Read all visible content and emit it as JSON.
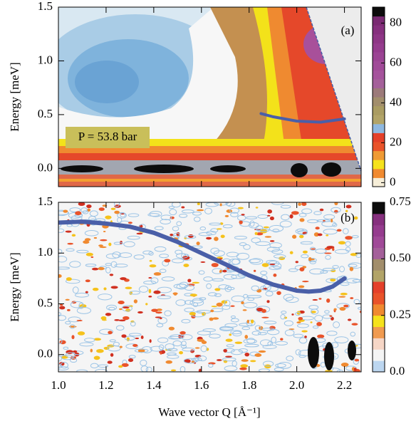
{
  "chart_data": [
    {
      "type": "contour",
      "annotation": "(a)",
      "pressure_label": "P = 53.8 bar",
      "y_label": "Energy [meV]",
      "xlim": [
        1.0,
        2.27
      ],
      "ylim": [
        -0.17,
        1.5
      ],
      "xticks": [
        {
          "value": 1.0,
          "label": "1.0"
        },
        1.2,
        1.4,
        1.6,
        1.8,
        {
          "value": 2.0,
          "label": "2.0"
        },
        2.2
      ],
      "xtick_labels": false,
      "yticks": [
        {
          "value": 0.0,
          "label": "0.0"
        },
        0.5,
        {
          "value": 1.0,
          "label": "1.0"
        },
        1.5
      ],
      "clim": [
        -2,
        88
      ],
      "cticks": [
        0,
        20,
        40,
        60,
        80
      ],
      "colormap": [
        "#f6eed8",
        "#f08a30",
        "#f5e21c",
        "#ef9a34",
        "#e9532a",
        "#e4402a",
        "#8fb8e0",
        "#b2a468",
        "#aa9c62",
        "#a28e6c",
        "#9c7a7a",
        "#a4609a",
        "#a5539c",
        "#a04a98",
        "#9b4494",
        "#953c8e",
        "#8e3686",
        "#86307e",
        "#7a2a72",
        "#0c0c0c"
      ],
      "series": [
        {
          "color": "#4a5fa8",
          "x": [
            1.85,
            1.9,
            2.0,
            2.1,
            2.2
          ],
          "values": [
            0.51,
            0.48,
            0.44,
            0.43,
            0.46
          ]
        }
      ]
    },
    {
      "type": "contour",
      "annotation": "(b)",
      "y_label": "Energy [meV]",
      "x_label": "Wave vector Q [Å⁻¹]",
      "xlim": [
        1.0,
        2.27
      ],
      "ylim": [
        -0.17,
        1.5
      ],
      "xticks": [
        {
          "value": 1.0,
          "label": "1.0"
        },
        1.2,
        1.4,
        1.6,
        1.8,
        {
          "value": 2.0,
          "label": "2.0"
        },
        2.2
      ],
      "xtick_labels": true,
      "yticks": [
        {
          "value": 0.0,
          "label": "0.0"
        },
        0.5,
        {
          "value": 1.0,
          "label": "1.0"
        },
        1.5
      ],
      "clim": [
        0,
        0.75
      ],
      "cticks": [
        {
          "value": 0.0,
          "label": "0.0"
        },
        0.25,
        {
          "value": 0.5,
          "label": "0.50"
        },
        0.75
      ],
      "colormap": [
        "#bcd6f0",
        "#f4f4f4",
        "#f6d6c6",
        "#f09a50",
        "#f5e21c",
        "#f08a30",
        "#e9532a",
        "#e4402a",
        "#b2a468",
        "#a28e6c",
        "#a4609a",
        "#a04a98",
        "#953c8e",
        "#86307e",
        "#0c0c0c"
      ],
      "series": [
        {
          "color": "#4a5fa8",
          "x": [
            1.0,
            1.1,
            1.2,
            1.3,
            1.4,
            1.5,
            1.6,
            1.7,
            1.8,
            1.9,
            2.0,
            2.05,
            2.1,
            2.15,
            2.2
          ],
          "values": [
            1.3,
            1.31,
            1.29,
            1.26,
            1.2,
            1.11,
            1.0,
            0.89,
            0.78,
            0.69,
            0.63,
            0.62,
            0.63,
            0.67,
            0.75
          ]
        }
      ]
    }
  ]
}
